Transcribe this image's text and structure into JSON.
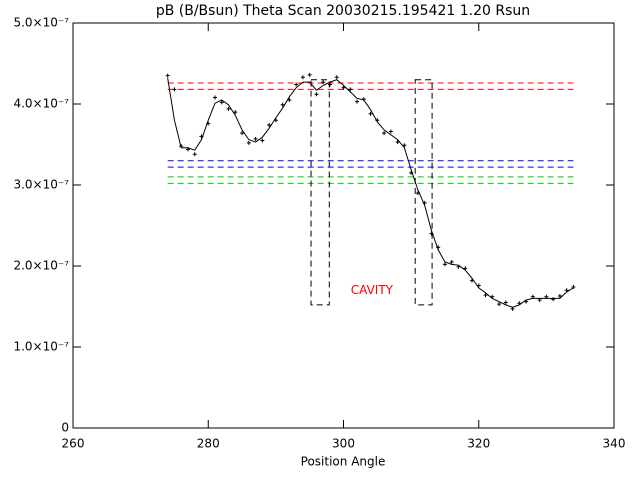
{
  "chart_data": {
    "type": "line",
    "title": "pB (B/Bsun) Theta Scan 20030215.195421 1.20 Rsun",
    "x_label": "Position Angle",
    "x": [
      274,
      275,
      276,
      277,
      278,
      279,
      280,
      281,
      282,
      283,
      284,
      285,
      286,
      287,
      288,
      289,
      290,
      291,
      292,
      293,
      294,
      295,
      296,
      297,
      298,
      299,
      300,
      301,
      302,
      303,
      304,
      305,
      306,
      307,
      308,
      309,
      310,
      311,
      312,
      313,
      314,
      315,
      316,
      317,
      318,
      319,
      320,
      321,
      322,
      323,
      324,
      325,
      326,
      327,
      328,
      329,
      330,
      331,
      332,
      333,
      334
    ],
    "series": [
      {
        "name": "smoothed",
        "color": "#000000",
        "style": "line",
        "values": [
          4.32e-07,
          3.8e-07,
          3.46e-07,
          3.46e-07,
          3.43e-07,
          3.56e-07,
          3.8e-07,
          4.01e-07,
          4.05e-07,
          3.99e-07,
          3.86e-07,
          3.68e-07,
          3.56e-07,
          3.53e-07,
          3.59e-07,
          3.7e-07,
          3.83e-07,
          3.95e-07,
          4.09e-07,
          4.2e-07,
          4.27e-07,
          4.27e-07,
          4.17e-07,
          4.23e-07,
          4.27e-07,
          4.3e-07,
          4.23e-07,
          4.15e-07,
          4.07e-07,
          4.05e-07,
          3.93e-07,
          3.78e-07,
          3.68e-07,
          3.62e-07,
          3.56e-07,
          3.46e-07,
          3.19e-07,
          2.94e-07,
          2.75e-07,
          2.44e-07,
          2.2e-07,
          2.05e-07,
          2.02e-07,
          2.01e-07,
          1.95e-07,
          1.85e-07,
          1.73e-07,
          1.67e-07,
          1.6e-07,
          1.56e-07,
          1.52e-07,
          1.49e-07,
          1.52e-07,
          1.58e-07,
          1.6e-07,
          1.6e-07,
          1.6e-07,
          1.6e-07,
          1.6e-07,
          1.68e-07,
          1.73e-07
        ]
      },
      {
        "name": "measured",
        "color": "#000000",
        "style": "plus",
        "values": [
          4.35e-07,
          4.18e-07,
          3.48e-07,
          3.44e-07,
          3.38e-07,
          3.6e-07,
          3.76e-07,
          4.08e-07,
          4.02e-07,
          3.94e-07,
          3.9e-07,
          3.64e-07,
          3.52e-07,
          3.57e-07,
          3.55e-07,
          3.74e-07,
          3.8e-07,
          3.99e-07,
          4.05e-07,
          4.24e-07,
          4.33e-07,
          4.36e-07,
          4.12e-07,
          4.27e-07,
          4.24e-07,
          4.33e-07,
          4.2e-07,
          4.18e-07,
          4.03e-07,
          4.06e-07,
          3.88e-07,
          3.8e-07,
          3.64e-07,
          3.66e-07,
          3.53e-07,
          3.49e-07,
          3.15e-07,
          2.9e-07,
          2.78e-07,
          2.4e-07,
          2.23e-07,
          2.02e-07,
          2.05e-07,
          1.99e-07,
          1.97e-07,
          1.82e-07,
          1.76e-07,
          1.64e-07,
          1.62e-07,
          1.53e-07,
          1.55e-07,
          1.47e-07,
          1.54e-07,
          1.56e-07,
          1.62e-07,
          1.58e-07,
          1.62e-07,
          1.59e-07,
          1.63e-07,
          1.7e-07,
          1.74e-07
        ]
      }
    ],
    "reference_lines": [
      {
        "value": 4.26e-07,
        "color": "#ff0000"
      },
      {
        "value": 4.18e-07,
        "color": "#ff0000"
      },
      {
        "value": 3.3e-07,
        "color": "#0000ff"
      },
      {
        "value": 3.22e-07,
        "color": "#0000ff"
      },
      {
        "value": 3.1e-07,
        "color": "#00cc00"
      },
      {
        "value": 3.02e-07,
        "color": "#00cc00"
      }
    ],
    "reference_range": [
      274,
      334
    ],
    "boxes": [
      {
        "x": [
          295.2,
          297.9
        ],
        "y": [
          1.52e-07,
          4.3e-07
        ]
      },
      {
        "x": [
          310.6,
          313.1
        ],
        "y": [
          1.52e-07,
          4.3e-07
        ]
      }
    ],
    "annotations": [
      {
        "text": "CAVITY",
        "x": 304.2,
        "y": 1.7e-07,
        "color": "#ff0000"
      }
    ],
    "xlim": [
      260,
      340
    ],
    "xticks": [
      260,
      280,
      300,
      320,
      340
    ],
    "ylim": [
      0,
      5e-07
    ],
    "yticks": [
      0,
      {
        "value": 1e-07,
        "label": "1.0×10⁻⁷"
      },
      {
        "value": 2e-07,
        "label": "2.0×10⁻⁷"
      },
      {
        "value": 3e-07,
        "label": "3.0×10⁻⁷"
      },
      {
        "value": 4e-07,
        "label": "4.0×10⁻⁷"
      },
      {
        "value": 5e-07,
        "label": "5.0×10⁻⁷"
      }
    ]
  }
}
